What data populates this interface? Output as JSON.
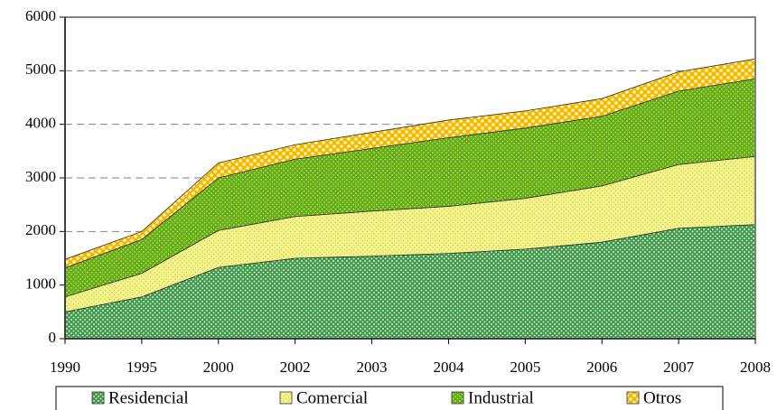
{
  "chart_data": {
    "type": "stacked_area",
    "categories": [
      "1990",
      "1995",
      "2000",
      "2002",
      "2003",
      "2004",
      "2005",
      "2006",
      "2007",
      "2008"
    ],
    "series": [
      {
        "name": "Residencial",
        "color": "#3f9a4a",
        "values": [
          500,
          780,
          1330,
          1500,
          1540,
          1590,
          1670,
          1800,
          2060,
          2130
        ]
      },
      {
        "name": "Comercial",
        "color": "#f2f28a",
        "values": [
          280,
          440,
          690,
          780,
          840,
          880,
          950,
          1050,
          1190,
          1270
        ]
      },
      {
        "name": "Industrial",
        "color": "#66b010",
        "values": [
          540,
          630,
          980,
          1070,
          1170,
          1280,
          1310,
          1300,
          1370,
          1450
        ]
      },
      {
        "name": "Otros",
        "color": "#f5b800",
        "values": [
          160,
          150,
          280,
          270,
          300,
          330,
          320,
          330,
          360,
          370
        ]
      }
    ],
    "ylim": [
      0,
      6000
    ],
    "yticks": [
      0,
      1000,
      2000,
      3000,
      4000,
      5000,
      6000
    ],
    "grid": true
  }
}
